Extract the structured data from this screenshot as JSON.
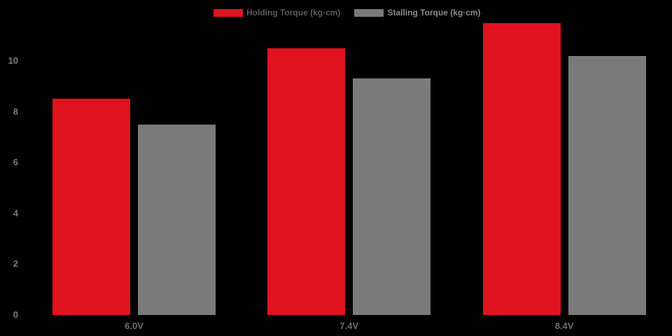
{
  "chart_data": {
    "type": "bar",
    "title": "",
    "xlabel": "",
    "ylabel": "",
    "categories": [
      "6.0V",
      "7.4V",
      "8.4V"
    ],
    "series": [
      {
        "name": "Holding Torque (kg·cm)",
        "key": "holding-torque",
        "values": [
          8.5,
          10.5,
          11.5
        ],
        "color": "#e1121f",
        "legend_text_color": "#5b5b5b"
      },
      {
        "name": "Stalling Torque (kg·cm)",
        "key": "stalling-torque",
        "values": [
          7.5,
          9.3,
          10.2
        ],
        "color": "#7a7a7a",
        "legend_text_color": "#8c8c8c"
      }
    ],
    "yticks": [
      0,
      2,
      4,
      6,
      8,
      10
    ],
    "ylim": [
      0,
      11.8
    ],
    "grid": false,
    "legend_position": "top",
    "background_color": "#000000",
    "ytick_color": "#7a7a7a",
    "xtick_color": "#6f6f6f"
  }
}
